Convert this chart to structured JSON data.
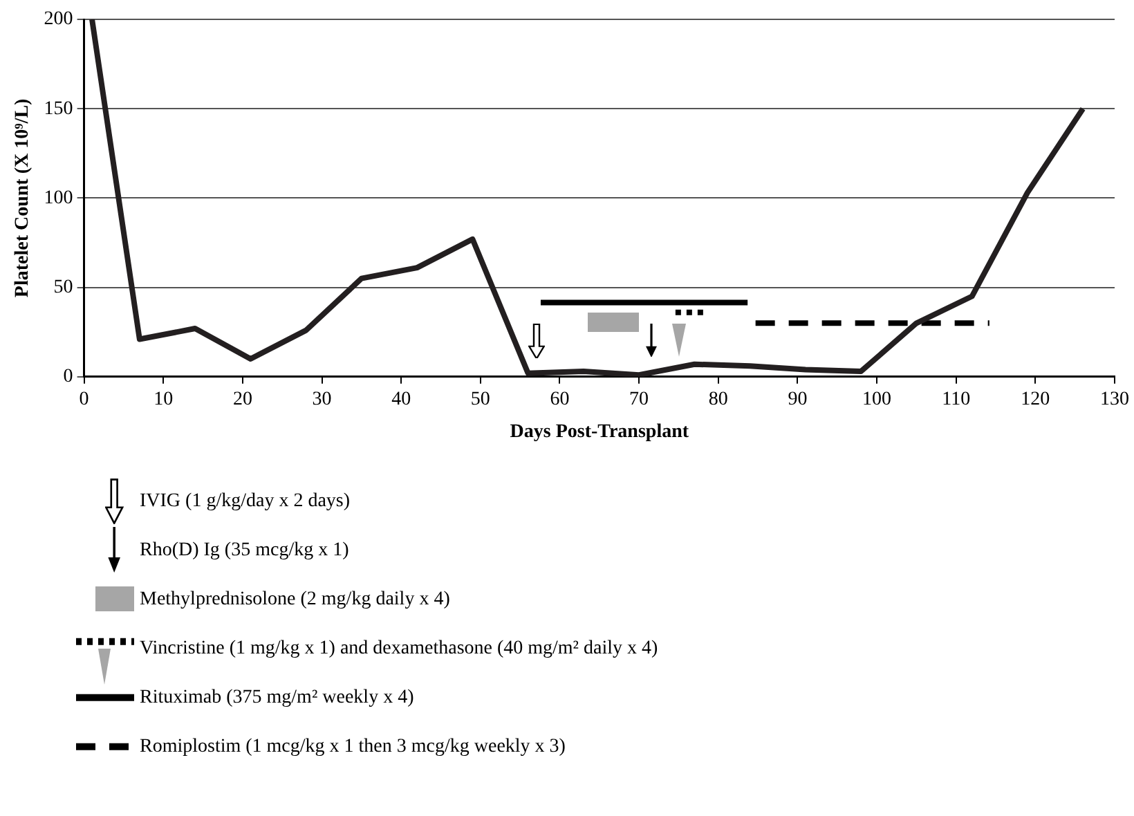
{
  "chart_data": {
    "type": "line",
    "xlabel": "Days Post-Transplant",
    "ylabel": "Platelet Count (X 10⁹/L)",
    "xlim": [
      0,
      130
    ],
    "xticks": [
      0,
      10,
      20,
      30,
      40,
      50,
      60,
      70,
      80,
      90,
      100,
      110,
      120,
      130
    ],
    "ylim": [
      0,
      200
    ],
    "yticks": [
      0,
      50,
      100,
      150,
      200
    ],
    "grid": "y",
    "legend": "bottom",
    "annotations": [
      "IVIG (1 g/kg/day x 2 days)",
      "Rho(D) Ig (35 mcg/kg x 1)",
      "Methylprednisolone (2 mg/kg daily x 4)"
    ],
    "series": [
      {
        "type": "line",
        "color": "#231f20",
        "x": [
          1,
          7,
          14,
          21,
          28,
          35,
          42,
          49,
          56,
          63,
          70,
          77,
          84,
          91,
          98,
          105,
          112,
          119,
          126
        ],
        "values": [
          200,
          21,
          27,
          10,
          26,
          55,
          61,
          77,
          2,
          3,
          1,
          7,
          6,
          4,
          3,
          30,
          45,
          103,
          150
        ]
      },
      {
        "name": "Vincristine (1 mg/kg x 1) and dexamethasone (40 mg/m² daily x 4)",
        "type": "line",
        "line_style": "dotted",
        "color": "#000000",
        "x": [
          74.6,
          78.5
        ],
        "values": [
          36,
          36
        ]
      },
      {
        "name": "Rituximab (375 mg/m² weekly x 4)",
        "type": "line",
        "color": "#000000",
        "x": [
          57.6,
          83.7
        ],
        "values": [
          41.5,
          41.5
        ]
      },
      {
        "name": "Romiplostim (1 mcg/kg x 1 then 3 mcg/kg weekly x 3)",
        "type": "line",
        "line_style": "dashed",
        "color": "#000000",
        "x": [
          84.7,
          114.2
        ],
        "values": [
          30,
          30
        ]
      }
    ]
  }
}
